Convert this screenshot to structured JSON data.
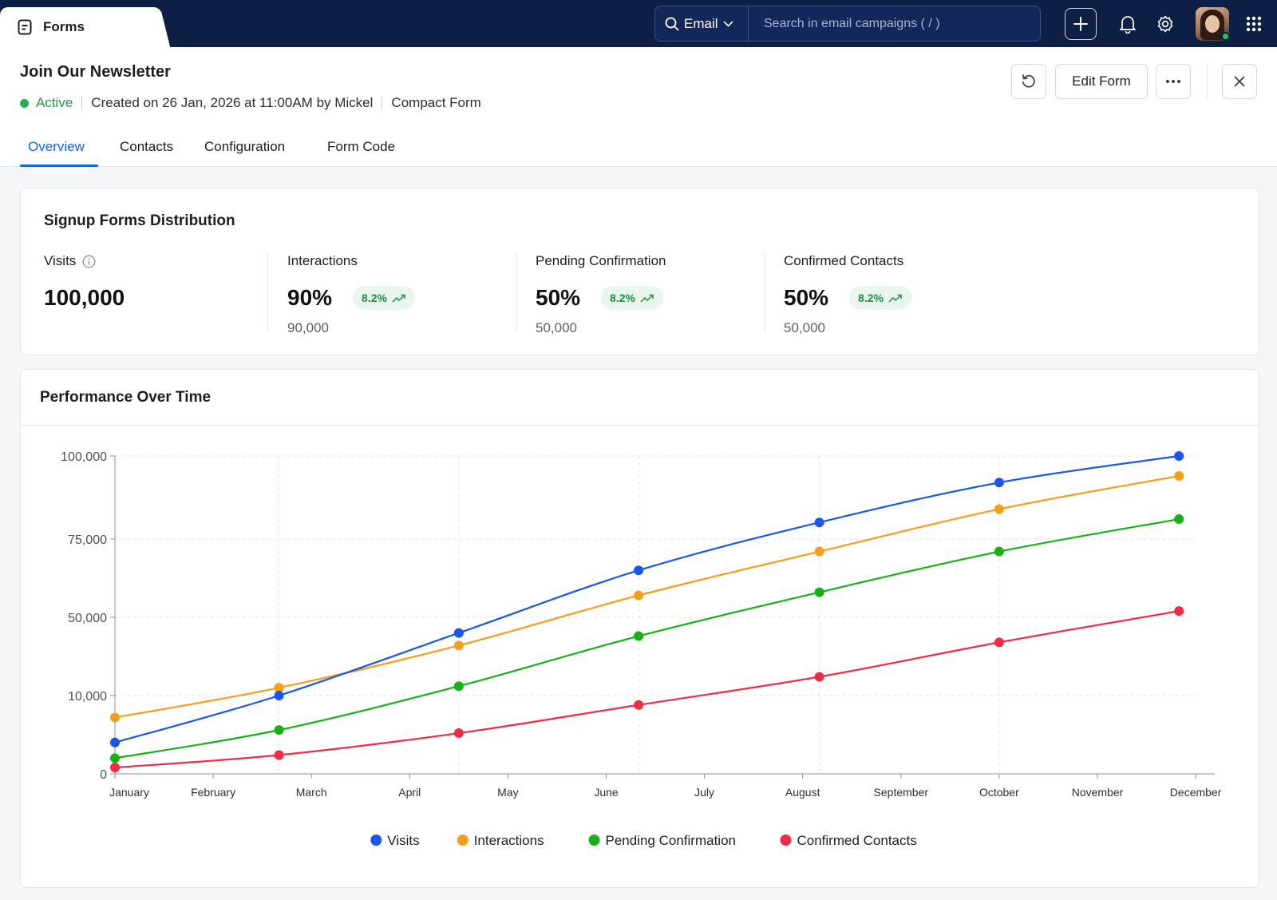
{
  "app": {
    "tab_title": "Forms"
  },
  "search": {
    "scope": "Email",
    "placeholder": "Search in email campaigns ( / )"
  },
  "form": {
    "title": "Join Our Newsletter",
    "status": "Active",
    "created": "Created on 26 Jan, 2026 at 11:00AM by Mickel",
    "type": "Compact Form"
  },
  "actions": {
    "edit_label": "Edit Form"
  },
  "tabs": [
    {
      "label": "Overview",
      "selected": true
    },
    {
      "label": "Contacts",
      "selected": false
    },
    {
      "label": "Configuration",
      "selected": false
    },
    {
      "label": "Form Code",
      "selected": false
    }
  ],
  "distribution": {
    "title": "Signup Forms Distribution",
    "stats": [
      {
        "label": "Visits",
        "value": "100,000",
        "badge": "",
        "sub": ""
      },
      {
        "label": "Interactions",
        "value": "90%",
        "badge": "8.2%",
        "sub": "90,000"
      },
      {
        "label": "Pending Confirmation",
        "value": "50%",
        "badge": "8.2%",
        "sub": "50,000"
      },
      {
        "label": "Confirmed Contacts",
        "value": "50%",
        "badge": "8.2%",
        "sub": "50,000"
      }
    ]
  },
  "performance": {
    "title": "Performance Over Time"
  },
  "colors": {
    "accent": "#1466dd",
    "active": "#22b14c",
    "badge_text": "#1e8a4c",
    "topbar": "#0d1f45"
  },
  "chart_data": {
    "type": "line",
    "categories": [
      "January",
      "February",
      "March",
      "April",
      "May",
      "June",
      "July",
      "August",
      "September",
      "October",
      "November",
      "December"
    ],
    "ytick_labels": [
      "0",
      "10,000",
      "50,000",
      "75,000",
      "100,000"
    ],
    "ylim": [
      0,
      100000
    ],
    "grid": true,
    "legend_position": "bottom",
    "series": [
      {
        "name": "Visits",
        "color": "#1a56e8",
        "points": [
          [
            1,
            10000
          ],
          [
            2.67,
            25000
          ],
          [
            4.5,
            45000
          ],
          [
            6.33,
            65000
          ],
          [
            8.17,
            80000
          ],
          [
            10,
            92000
          ],
          [
            11.83,
            100000
          ]
        ]
      },
      {
        "name": "Interactions",
        "color": "#f59e1b",
        "points": [
          [
            1,
            18000
          ],
          [
            2.67,
            27500
          ],
          [
            4.5,
            41000
          ],
          [
            6.33,
            57000
          ],
          [
            8.17,
            71000
          ],
          [
            10,
            84000
          ],
          [
            11.83,
            94000
          ]
        ]
      },
      {
        "name": "Pending Confirmation",
        "color": "#17b117",
        "points": [
          [
            1,
            5000
          ],
          [
            2.67,
            14000
          ],
          [
            4.5,
            28000
          ],
          [
            6.33,
            44000
          ],
          [
            8.17,
            58000
          ],
          [
            10,
            71000
          ],
          [
            11.83,
            81000
          ]
        ]
      },
      {
        "name": "Confirmed Contacts",
        "color": "#ef2b45",
        "points": [
          [
            1,
            2000
          ],
          [
            2.67,
            6000
          ],
          [
            4.5,
            13000
          ],
          [
            6.33,
            22000
          ],
          [
            8.17,
            31000
          ],
          [
            10,
            42000
          ],
          [
            11.83,
            52000
          ]
        ]
      }
    ]
  }
}
